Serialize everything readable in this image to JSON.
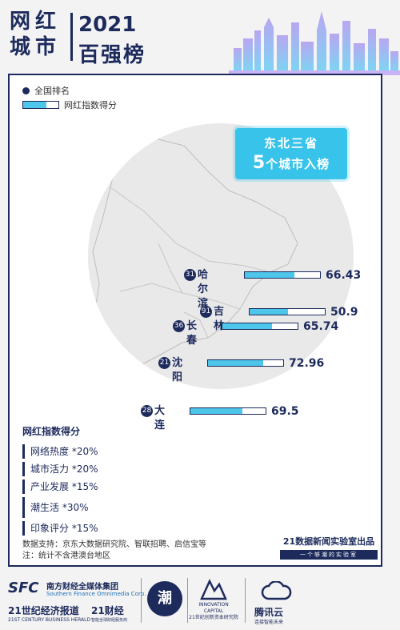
{
  "header": {
    "logo_chars": [
      "网",
      "红",
      "城",
      "市"
    ],
    "year": "2021",
    "title": "百强榜"
  },
  "legend": {
    "rank_label": "全国排名",
    "score_label": "网红指数得分"
  },
  "callout": {
    "line1": "东北三省",
    "count": "5",
    "line2_suffix": "个城市入榜"
  },
  "chart_data": {
    "type": "bar",
    "categories": [
      "哈尔滨",
      "吉林",
      "长春",
      "沈阳",
      "大连"
    ],
    "ranks": [
      "31",
      "91",
      "36",
      "21",
      "28"
    ],
    "values": [
      66.43,
      50.9,
      65.74,
      72.96,
      69.5
    ],
    "value_labels": [
      "66.43",
      "50.9",
      "65.74",
      "72.96",
      "69.5"
    ],
    "ylim": [
      0,
      100
    ],
    "colors": {
      "fill": "#4dc6ec",
      "outline": "#1c2a5c"
    }
  },
  "weights": {
    "title": "网红指数得分",
    "items": [
      "网络热度 *20%",
      "城市活力 *20%",
      "产业发展 *15%",
      "潮生活 *30%",
      "印象评分 *15%"
    ]
  },
  "source": {
    "line1": "数据支持：京东大数据研究院、智联招聘、启信宝等",
    "line2": "注：统计不含港澳台地区"
  },
  "lab": {
    "title": "21数据新闻实验室出品",
    "slogan": "一个够潮的实验室"
  },
  "footer": {
    "sfc": "SFC",
    "group_cn": "南方财经全媒体集团",
    "group_en": "Southern Finance Omnimedia Corp.",
    "paper": "21世纪经济报道",
    "paper_en": "21ST CENTURY BUSINESS HERALD",
    "brand21": "21财经",
    "brand21_sub": "智能全球财经服务商",
    "chao": "潮",
    "ic_name": "INNOVATION CAPITAL",
    "ic_sub": "21世纪创新资本研究院",
    "tencent": "腾讯云",
    "tencent_sub": "连接智能未来"
  },
  "colors": {
    "navy": "#1c2a5c",
    "cyan": "#4dc6ec",
    "map_fill": "#e9e9e9"
  }
}
